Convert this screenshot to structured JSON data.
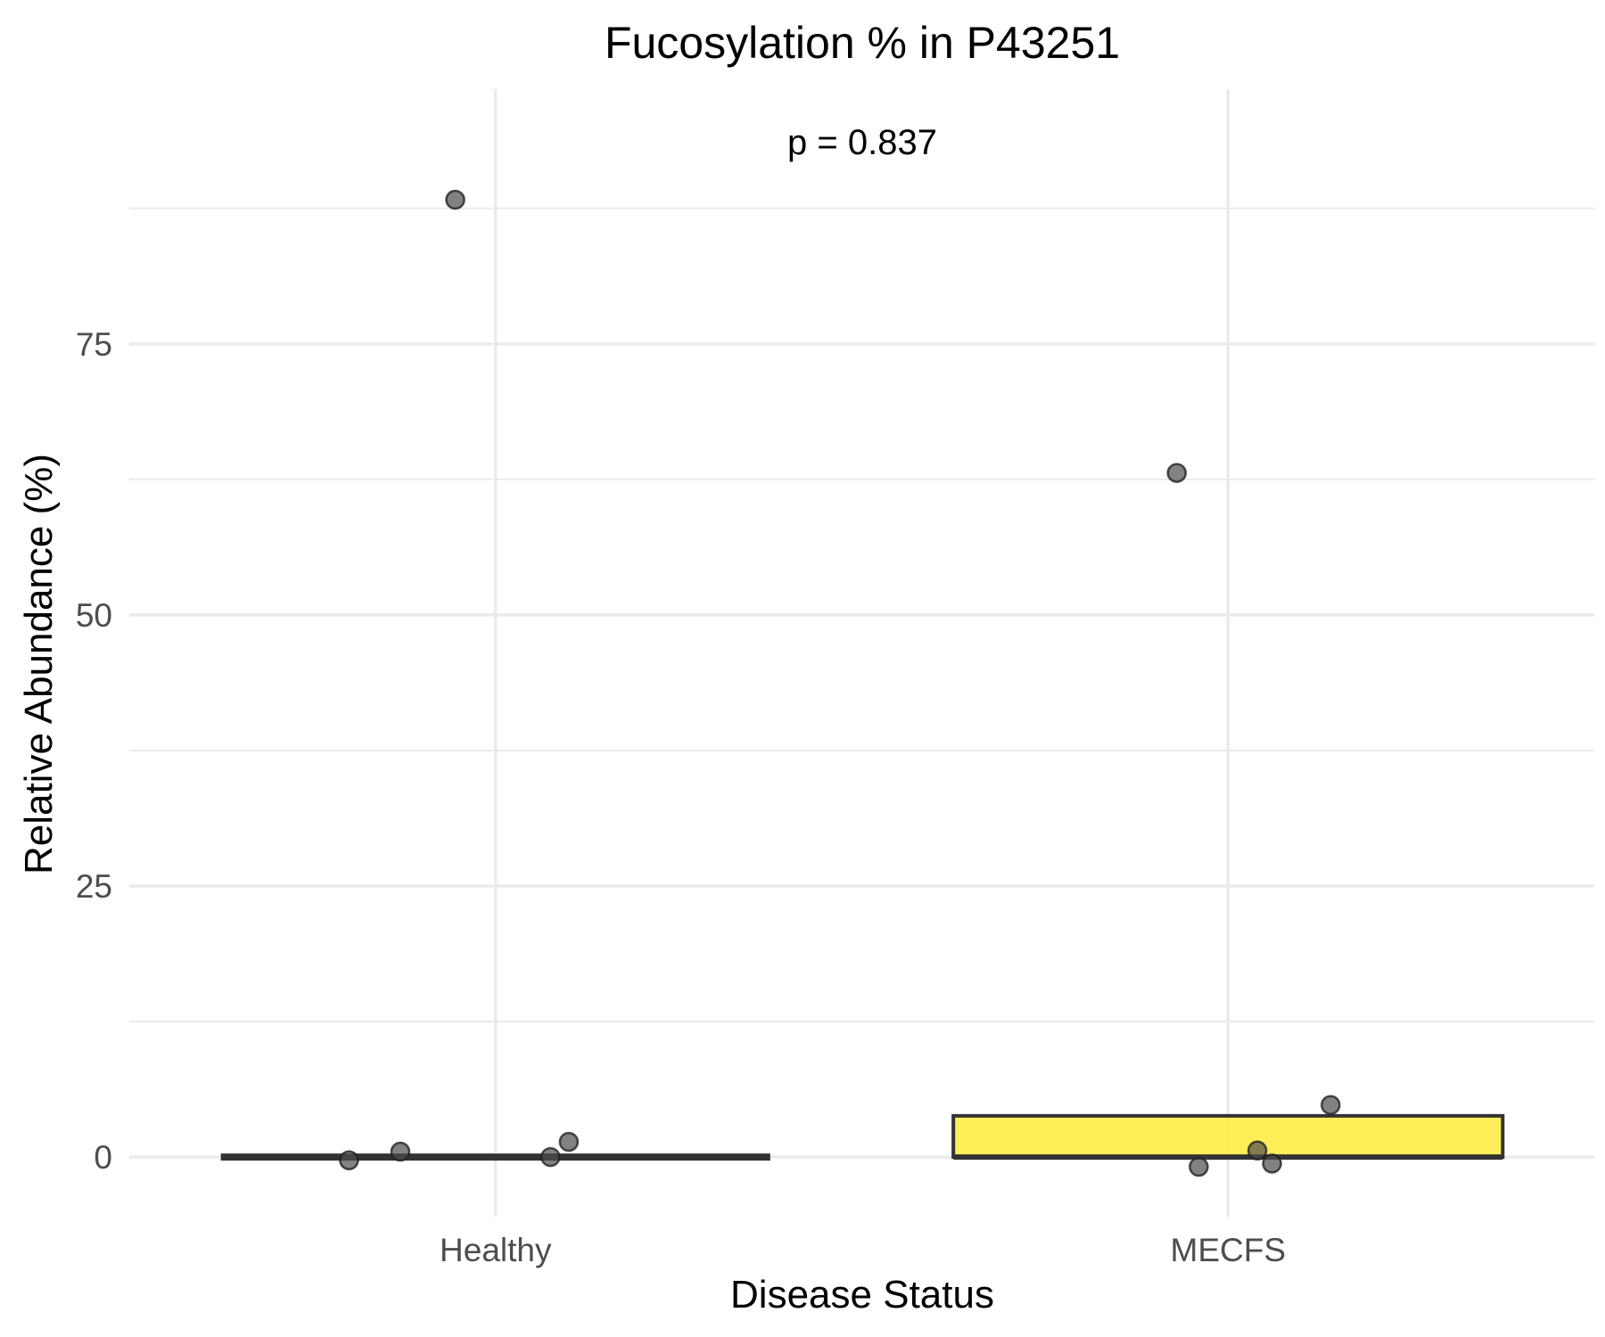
{
  "chart_data": {
    "type": "bar",
    "title": "Fucosylation % in P43251",
    "xlabel": "Disease Status",
    "ylabel": "Relative Abundance (%)",
    "categories": [
      "Healthy",
      "MECFS"
    ],
    "values": [
      0.0,
      3.8
    ],
    "bar_colors": [
      "#3a3a3a",
      "#FFEB3B"
    ],
    "points": [
      {
        "category": "Healthy",
        "jitter": -0.2,
        "y": -0.3
      },
      {
        "category": "Healthy",
        "jitter": -0.13,
        "y": 0.5
      },
      {
        "category": "Healthy",
        "jitter": -0.055,
        "y": 88.3
      },
      {
        "category": "Healthy",
        "jitter": 0.075,
        "y": 0.0
      },
      {
        "category": "Healthy",
        "jitter": 0.1,
        "y": 1.4
      },
      {
        "category": "MECFS",
        "jitter": -0.07,
        "y": 63.1
      },
      {
        "category": "MECFS",
        "jitter": -0.04,
        "y": -0.9
      },
      {
        "category": "MECFS",
        "jitter": 0.04,
        "y": 0.6
      },
      {
        "category": "MECFS",
        "jitter": 0.06,
        "y": -0.6
      },
      {
        "category": "MECFS",
        "jitter": 0.14,
        "y": 4.8
      }
    ],
    "annotation": "p = 0.837",
    "ylim": [
      -5.5,
      98.5
    ],
    "yticks": [
      0,
      25,
      50,
      75
    ],
    "yticks_minor": [
      12.5,
      37.5,
      62.5,
      87.5
    ],
    "grid": true,
    "legend": "none",
    "colors": {
      "grid": "#ebebeb",
      "point": "#4d4d4d",
      "bar_outline": "#333333",
      "text": "#000000",
      "tick_text": "#4d4d4d"
    }
  }
}
